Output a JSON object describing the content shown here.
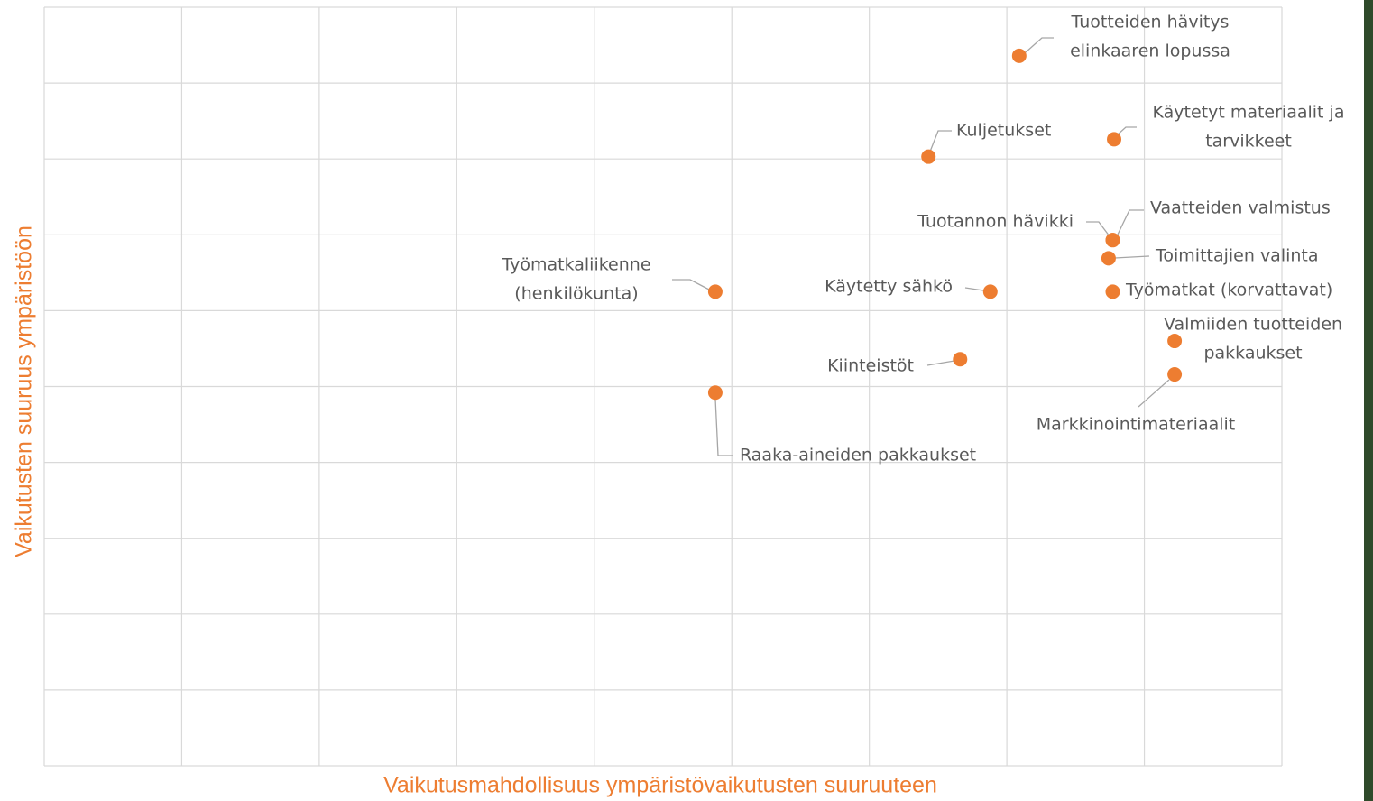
{
  "chart_data": {
    "type": "scatter",
    "x_label": "Vaikutusmahdollisuus ympäristövaikutusten suuruuteen",
    "y_label": "Vaikutusten suuruus ympäristöön",
    "color": "#ed7d31",
    "grid": true,
    "xlim": [
      0,
      9
    ],
    "xticks": [
      0,
      1,
      2,
      3,
      4,
      5,
      6,
      7,
      8,
      9
    ],
    "ylim": [
      0,
      10
    ],
    "yticks": [
      0,
      1,
      2,
      3,
      4,
      5,
      6,
      7,
      8,
      9,
      10
    ],
    "labels": [
      [
        "Tuotteiden hävitys",
        "elinkaaren lopussa"
      ],
      [
        "Kuljetukset"
      ],
      [
        "Käytetyt materiaalit ja",
        "tarvikkeet"
      ],
      [
        "Tuotannon hävikki"
      ],
      [
        "Vaatteiden valmistus"
      ],
      [
        "Toimittajien valinta"
      ],
      [
        "Työmatkaliikenne",
        "(henkilökunta)"
      ],
      [
        "Käytetty sähkö"
      ],
      [
        "Työmatkat (korvattavat)"
      ],
      [
        "Valmiiden tuotteiden",
        "pakkaukset"
      ],
      [
        "Markkinointimateriaalit"
      ],
      [
        "Kiinteistöt"
      ],
      [
        "Raaka-aineiden pakkaukset"
      ]
    ],
    "x": [
      7.09,
      6.43,
      7.78,
      7.77,
      7.77,
      7.74,
      4.88,
      6.88,
      7.77,
      8.22,
      8.22,
      6.66,
      4.88
    ],
    "values": [
      9.36,
      8.03,
      8.26,
      6.93,
      6.93,
      6.69,
      6.25,
      6.25,
      6.25,
      5.6,
      5.16,
      5.36,
      4.92
    ]
  }
}
